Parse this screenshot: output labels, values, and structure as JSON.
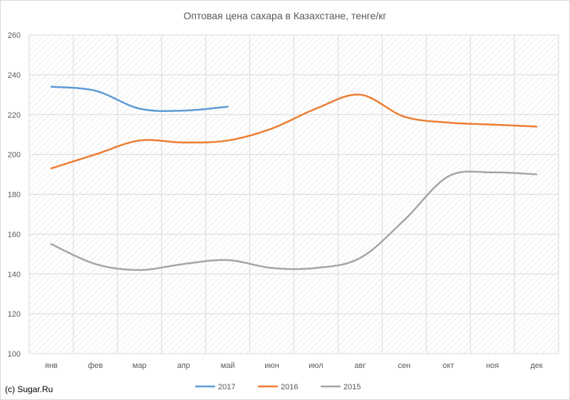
{
  "chart_data": {
    "type": "line",
    "title": "Оптовая цена сахара в Казахстане, тенге/кг",
    "categories": [
      "янв",
      "фев",
      "мар",
      "апр",
      "май",
      "июн",
      "июл",
      "авг",
      "сен",
      "окт",
      "ноя",
      "дек"
    ],
    "ylim": [
      100,
      260
    ],
    "yticks": [
      100,
      120,
      140,
      160,
      180,
      200,
      220,
      240,
      260
    ],
    "grid": true,
    "legend_position": "bottom",
    "series": [
      {
        "name": "2017",
        "color": "#5B9BD5",
        "values": [
          234,
          232,
          223,
          222,
          224,
          null,
          null,
          null,
          null,
          null,
          null,
          null
        ]
      },
      {
        "name": "2016",
        "color": "#ED7D31",
        "values": [
          193,
          200,
          207,
          206,
          207,
          213,
          223,
          230,
          219,
          216,
          215,
          214
        ]
      },
      {
        "name": "2015",
        "color": "#A5A5A5",
        "values": [
          155,
          145,
          142,
          145,
          147,
          143,
          143,
          148,
          167,
          189,
          191,
          190
        ]
      }
    ]
  },
  "credit": "(c) Sugar.Ru",
  "colors": {
    "grid": "#d9d9d9",
    "text": "#595959",
    "hatch": "#f3f3f3"
  }
}
